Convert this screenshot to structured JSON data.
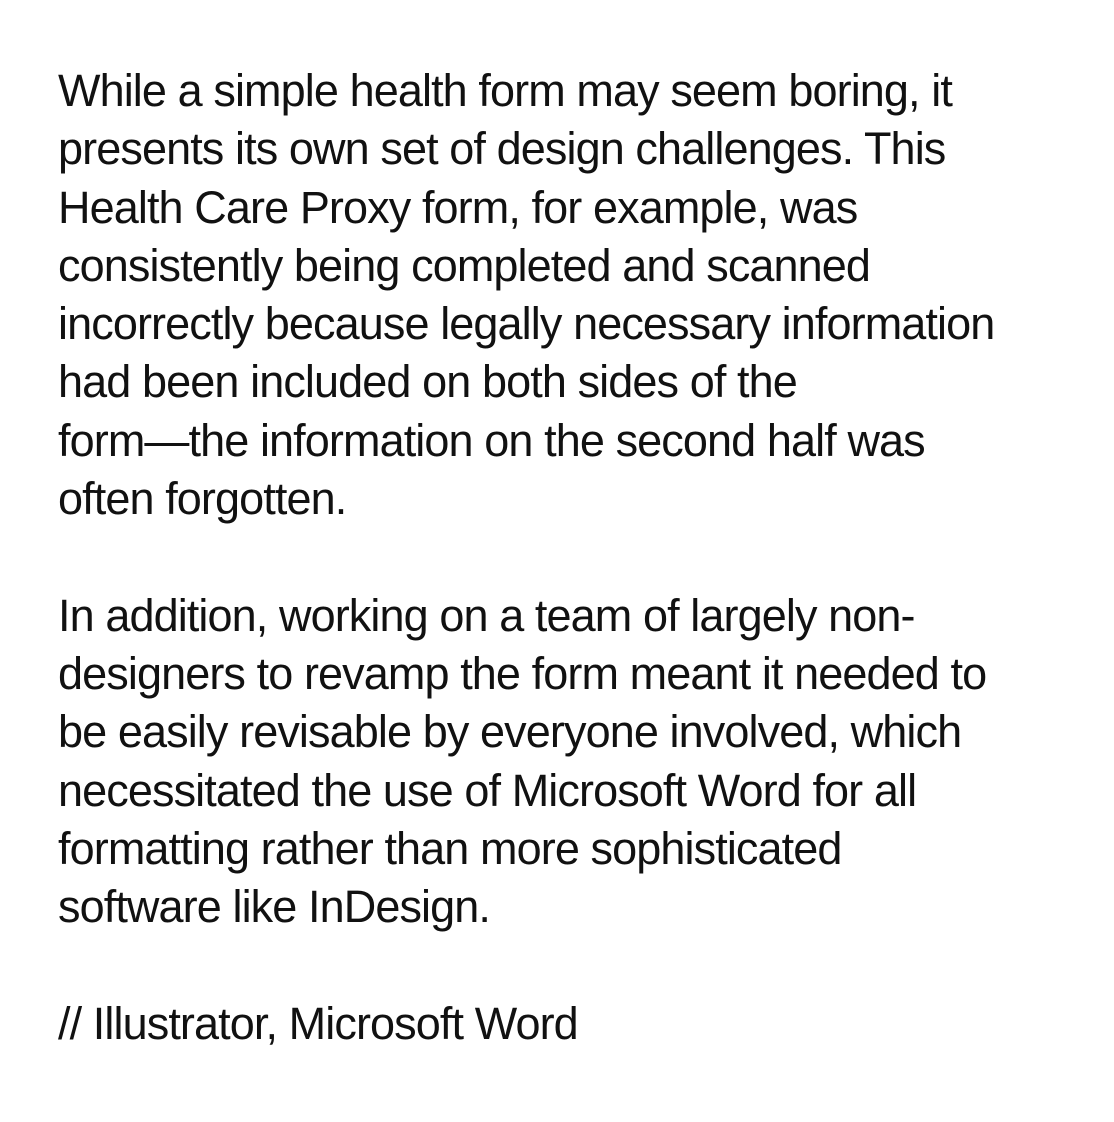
{
  "paragraphs": [
    {
      "lines": [
        "While a simple health form may seem boring, it",
        "presents its own set of design challenges. This",
        "Health Care Proxy form, for example, was",
        "consistently being completed and scanned",
        "incorrectly because legally necessary information",
        "had been included on both sides of the",
        "form—the information on the second half was",
        "often forgotten."
      ]
    },
    {
      "lines": [
        "In addition, working on a team of largely non-",
        "designers to revamp the form meant it needed to",
        "be easily revisable by everyone involved, which",
        "necessitated the use of Microsoft Word for all",
        "formatting rather than more sophisticated",
        "software like InDesign."
      ]
    },
    {
      "lines": [
        "// Illustrator, Microsoft Word"
      ]
    }
  ]
}
